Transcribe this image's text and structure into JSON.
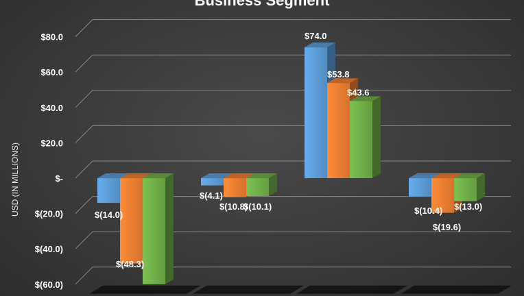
{
  "chart_data": {
    "type": "bar",
    "title": "Business Segment",
    "ylabel": "USD (IN MILLIONS)",
    "xlabel": "",
    "ylim": [
      -60,
      80
    ],
    "yticks": [
      80,
      60,
      40,
      20,
      0,
      -20,
      -40,
      -60
    ],
    "ytick_labels": [
      "$80.0",
      "$60.0",
      "$40.0",
      "$20.0",
      "$-",
      "$(20.0)",
      "$(40.0)",
      "$(60.0)"
    ],
    "categories": [
      "",
      "",
      "",
      ""
    ],
    "series": [
      {
        "values": [
          -14.0,
          -4.1,
          74.0,
          -10.4
        ],
        "labels": [
          "$(14.0)",
          "$(4.1)",
          "$74.0",
          "$(10.4)"
        ]
      },
      {
        "values": [
          -48.3,
          -10.8,
          53.8,
          -19.6
        ],
        "labels": [
          "$(48.3)",
          "$(10.8)",
          "$53.8",
          "$(19.6)"
        ]
      },
      {
        "values": [
          -60.0,
          -10.1,
          43.6,
          -13.0
        ],
        "labels": [
          "",
          "$(10.1)",
          "$43.6",
          "$(13.0)"
        ]
      }
    ],
    "colors": [
      "#5b9bd5",
      "#ed7d31",
      "#70ad47"
    ],
    "grid": true,
    "legend": "none"
  }
}
